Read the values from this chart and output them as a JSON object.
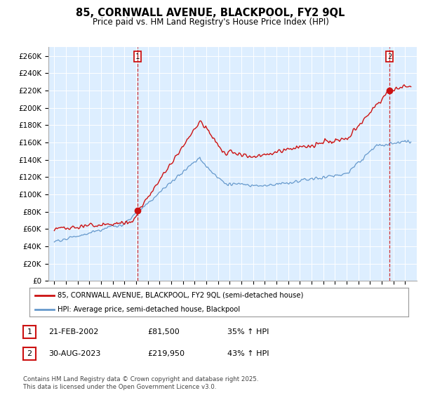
{
  "title": "85, CORNWALL AVENUE, BLACKPOOL, FY2 9QL",
  "subtitle": "Price paid vs. HM Land Registry's House Price Index (HPI)",
  "ylim": [
    0,
    270000
  ],
  "yticks": [
    0,
    20000,
    40000,
    60000,
    80000,
    100000,
    120000,
    140000,
    160000,
    180000,
    200000,
    220000,
    240000,
    260000
  ],
  "ytick_labels": [
    "£0",
    "£20K",
    "£40K",
    "£60K",
    "£80K",
    "£100K",
    "£120K",
    "£140K",
    "£160K",
    "£180K",
    "£200K",
    "£220K",
    "£240K",
    "£260K"
  ],
  "hpi_color": "#6699cc",
  "price_color": "#cc1111",
  "marker_color": "#cc1111",
  "vline_color": "#cc1111",
  "chart_bg": "#ddeeff",
  "background_color": "#ffffff",
  "grid_color": "#ffffff",
  "sale1_date_x": 2002.13,
  "sale1_price": 81500,
  "sale1_label": "1",
  "sale2_date_x": 2023.66,
  "sale2_price": 219950,
  "sale2_label": "2",
  "legend_line1": "85, CORNWALL AVENUE, BLACKPOOL, FY2 9QL (semi-detached house)",
  "legend_line2": "HPI: Average price, semi-detached house, Blackpool",
  "table_row1": [
    "1",
    "21-FEB-2002",
    "£81,500",
    "35% ↑ HPI"
  ],
  "table_row2": [
    "2",
    "30-AUG-2023",
    "£219,950",
    "43% ↑ HPI"
  ],
  "footnote": "Contains HM Land Registry data © Crown copyright and database right 2025.\nThis data is licensed under the Open Government Licence v3.0.",
  "xmin": 1994.5,
  "xmax": 2026.0
}
